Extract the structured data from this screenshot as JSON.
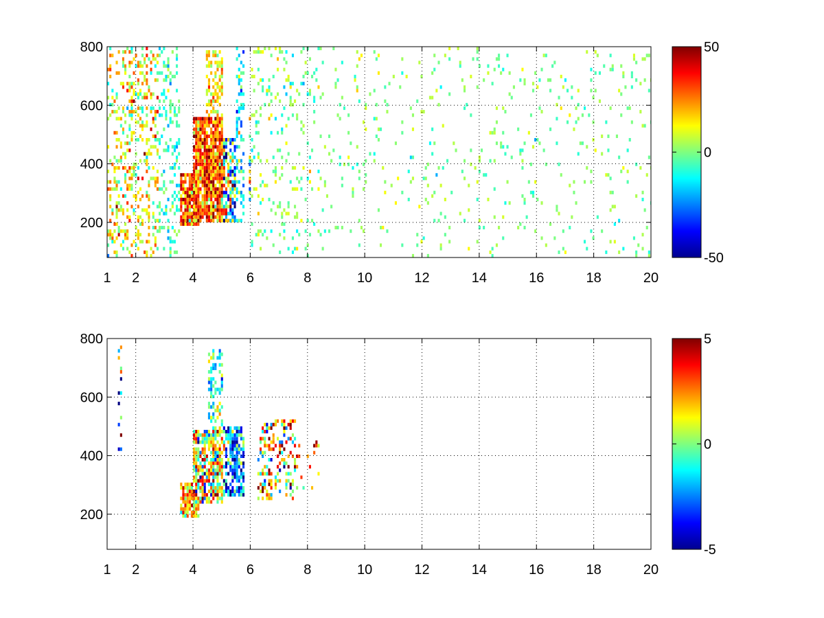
{
  "chart_data": [
    {
      "type": "heatmap",
      "title": "",
      "xlabel": "",
      "ylabel": "",
      "xlim": [
        1,
        20
      ],
      "ylim": [
        80,
        800
      ],
      "xticks": [
        1,
        2,
        4,
        6,
        8,
        10,
        12,
        14,
        16,
        18,
        20
      ],
      "yticks": [
        200,
        400,
        600,
        800
      ],
      "grid": true,
      "colorbar": {
        "range": [
          -50,
          50
        ],
        "ticks": [
          -50,
          0,
          50
        ],
        "colormap": "jet"
      },
      "background_color": "#ffffff",
      "regions": [
        {
          "x": [
            1.0,
            2.8
          ],
          "y": [
            80,
            800
          ],
          "mean": 12,
          "spread": 14,
          "density": 0.28
        },
        {
          "x": [
            2.8,
            3.5
          ],
          "y": [
            80,
            800
          ],
          "mean": -6,
          "spread": 8,
          "density": 0.22
        },
        {
          "x": [
            3.5,
            4.2
          ],
          "y": [
            180,
            360
          ],
          "mean": 26,
          "spread": 14,
          "density": 0.85
        },
        {
          "x": [
            4.0,
            5.0
          ],
          "y": [
            200,
            550
          ],
          "mean": 30,
          "spread": 14,
          "density": 0.92
        },
        {
          "x": [
            4.4,
            5.0
          ],
          "y": [
            550,
            780
          ],
          "mean": 16,
          "spread": 10,
          "density": 0.55
        },
        {
          "x": [
            5.0,
            5.8
          ],
          "y": [
            200,
            480
          ],
          "mean": -10,
          "spread": 26,
          "density": 0.7
        },
        {
          "x": [
            5.5,
            5.8
          ],
          "y": [
            200,
            800
          ],
          "mean": -14,
          "spread": 10,
          "density": 0.35
        },
        {
          "x": [
            5.9,
            8.0
          ],
          "y": [
            250,
            560
          ],
          "mean": 0,
          "spread": 20,
          "density": 0.5
        },
        {
          "x": [
            6.0,
            8.5
          ],
          "y": [
            80,
            800
          ],
          "mean": 0,
          "spread": 8,
          "density": 0.12
        },
        {
          "x": [
            8.5,
            20.0
          ],
          "y": [
            80,
            800
          ],
          "mean": 0,
          "spread": 6,
          "density": 0.05
        }
      ]
    },
    {
      "type": "heatmap",
      "title": "",
      "xlabel": "",
      "ylabel": "",
      "xlim": [
        1,
        20
      ],
      "ylim": [
        80,
        800
      ],
      "xticks": [
        1,
        2,
        4,
        6,
        8,
        10,
        12,
        14,
        16,
        18,
        20
      ],
      "yticks": [
        200,
        400,
        600,
        800
      ],
      "grid": true,
      "colorbar": {
        "range": [
          -5,
          5
        ],
        "ticks": [
          -5,
          0,
          5
        ],
        "colormap": "jet"
      },
      "background_color": "#ffffff",
      "regions": [
        {
          "x": [
            1.3,
            1.5
          ],
          "y": [
            350,
            780
          ],
          "mean": 0,
          "spread": 4,
          "density": 0.25
        },
        {
          "x": [
            3.5,
            4.2
          ],
          "y": [
            180,
            300
          ],
          "mean": 2,
          "spread": 1.5,
          "density": 0.8
        },
        {
          "x": [
            4.0,
            5.0
          ],
          "y": [
            230,
            480
          ],
          "mean": 1,
          "spread": 2,
          "density": 0.8
        },
        {
          "x": [
            4.5,
            5.0
          ],
          "y": [
            480,
            760
          ],
          "mean": -1,
          "spread": 1.5,
          "density": 0.45
        },
        {
          "x": [
            5.0,
            5.8
          ],
          "y": [
            250,
            500
          ],
          "mean": -2.5,
          "spread": 2,
          "density": 0.7
        },
        {
          "x": [
            6.2,
            7.6
          ],
          "y": [
            240,
            520
          ],
          "mean": 1.5,
          "spread": 3,
          "density": 0.35
        },
        {
          "x": [
            7.6,
            8.4
          ],
          "y": [
            280,
            460
          ],
          "mean": 3,
          "spread": 2,
          "density": 0.15
        }
      ]
    }
  ]
}
